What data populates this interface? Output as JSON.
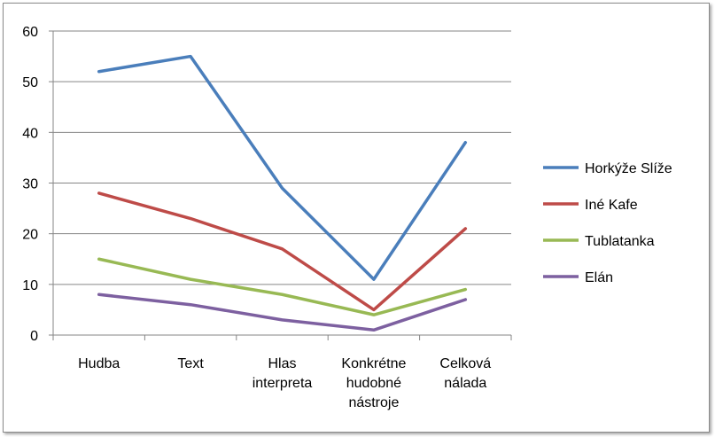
{
  "chart_data": {
    "type": "line",
    "categories": [
      [
        "Hudba"
      ],
      [
        "Text"
      ],
      [
        "Hlas",
        "interpreta"
      ],
      [
        "Konkrétne",
        "hudobné",
        "nástroje"
      ],
      [
        "Celková",
        "nálada"
      ]
    ],
    "ylim": [
      0,
      60
    ],
    "yticks": [
      0,
      10,
      20,
      30,
      40,
      50,
      60
    ],
    "grid": true,
    "legend_position": "right",
    "series": [
      {
        "name": "Horkýže Slíže",
        "color": "#4a7ebb",
        "values": [
          52,
          55,
          29,
          11,
          38
        ]
      },
      {
        "name": "Iné Kafe",
        "color": "#be4b48",
        "values": [
          28,
          23,
          17,
          5,
          21
        ]
      },
      {
        "name": "Tublatanka",
        "color": "#98b954",
        "values": [
          15,
          11,
          8,
          4,
          9
        ]
      },
      {
        "name": "Elán",
        "color": "#7d60a0",
        "values": [
          8,
          6,
          3,
          1,
          7
        ]
      }
    ]
  }
}
